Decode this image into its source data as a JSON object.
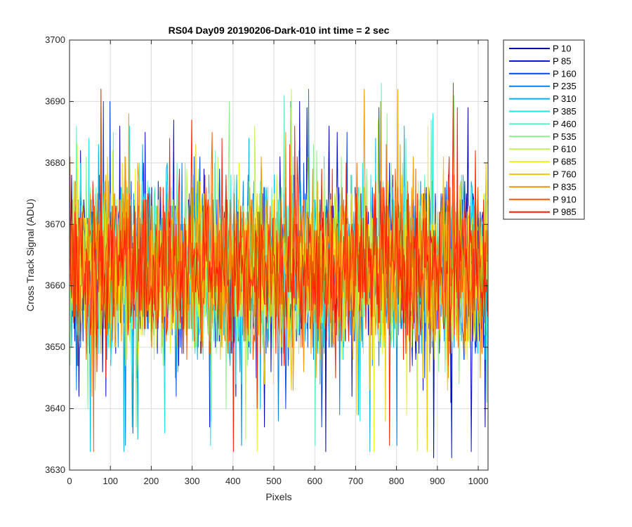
{
  "chart_data": {
    "type": "line",
    "title": "RS04 Day09 20190206-Dark-010 int time = 2 sec",
    "xlabel": "Pixels",
    "ylabel": "Cross Track Signal (ADU)",
    "xlim": [
      0,
      1024
    ],
    "ylim": [
      3630,
      3700
    ],
    "xticks": [
      0,
      100,
      200,
      300,
      400,
      500,
      600,
      700,
      800,
      900,
      1000
    ],
    "yticks": [
      3630,
      3640,
      3650,
      3660,
      3670,
      3680,
      3690,
      3700
    ],
    "grid": true,
    "legend_placement": "outside-right",
    "x_range": [
      1,
      1024
    ],
    "signal_mean": 3663,
    "signal_band": [
      3645,
      3680
    ],
    "signal_extremes": [
      3632,
      3693
    ],
    "series": [
      {
        "name": "P 10",
        "color": "#0000b4"
      },
      {
        "name": "P 85",
        "color": "#0010dc"
      },
      {
        "name": "P 160",
        "color": "#0046e6"
      },
      {
        "name": "P 235",
        "color": "#0082e8"
      },
      {
        "name": "P 310",
        "color": "#00b4e8"
      },
      {
        "name": "P 385",
        "color": "#1ee6e6"
      },
      {
        "name": "P 460",
        "color": "#5af0be"
      },
      {
        "name": "P 535",
        "color": "#8cf08c"
      },
      {
        "name": "P 610",
        "color": "#c3f050"
      },
      {
        "name": "P 685",
        "color": "#f0f01e"
      },
      {
        "name": "P 760",
        "color": "#f0c800"
      },
      {
        "name": "P 835",
        "color": "#f59600"
      },
      {
        "name": "P 910",
        "color": "#f55a00"
      },
      {
        "name": "P 985",
        "color": "#ff1e00"
      }
    ]
  }
}
